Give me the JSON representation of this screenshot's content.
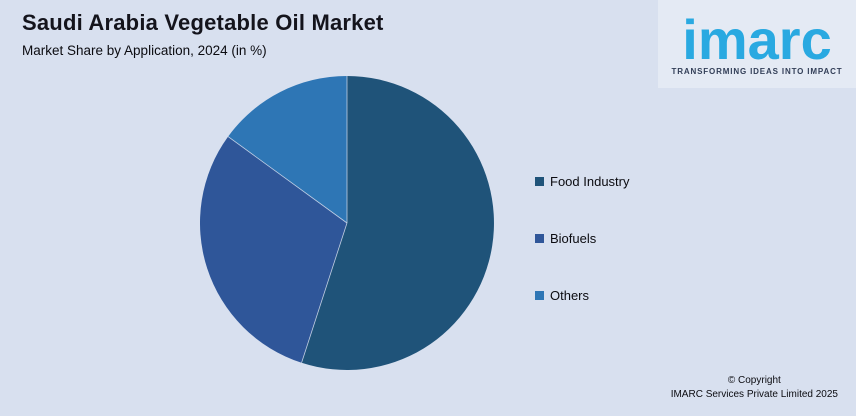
{
  "page": {
    "background": "#D8E0EF"
  },
  "header": {
    "title": "Saudi Arabia Vegetable Oil Market",
    "subtitle": "Market Share by Application, 2024 (in %)"
  },
  "chart_data": {
    "type": "pie",
    "title": "Saudi Arabia Vegetable Oil Market",
    "subtitle": "Market Share by Application, 2024 (in %)",
    "labels": [
      "Food Industry",
      "Biofuels",
      "Others"
    ],
    "values": [
      55,
      30,
      15
    ],
    "unit": "%",
    "colors": [
      "#1F5379",
      "#2F5699",
      "#2E76B5"
    ],
    "start_angle_deg": 0,
    "direction": "clockwise",
    "legend_position": "right",
    "data_labels_shown": false,
    "separator_color": "#D8E0EF"
  },
  "legend": {
    "items": [
      {
        "label": "Food Industry",
        "color": "#1F5379"
      },
      {
        "label": "Biofuels",
        "color": "#2F5699"
      },
      {
        "label": "Others",
        "color": "#2E76B5"
      }
    ]
  },
  "logo": {
    "wordmark": "imarc",
    "tagline": "TRANSFORMING IDEAS INTO IMPACT",
    "brand_color": "#29A9E1"
  },
  "footer": {
    "copyright_line1": "© Copyright",
    "copyright_line2": "IMARC Services Private Limited 2025"
  }
}
